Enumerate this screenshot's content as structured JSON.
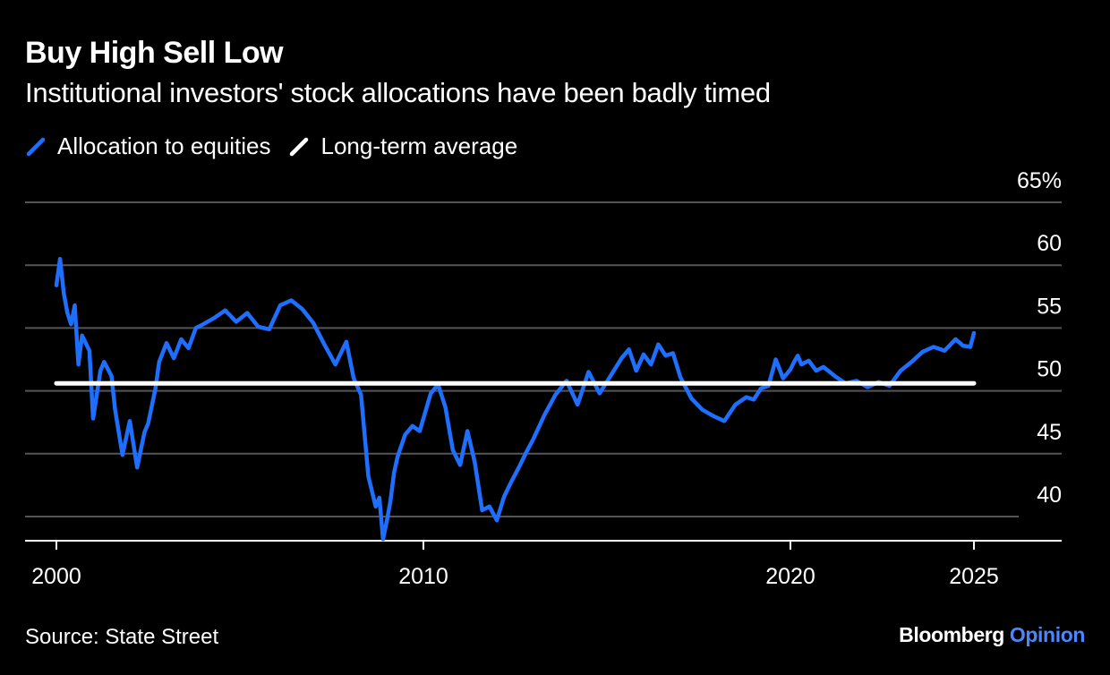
{
  "header": {
    "title": "Buy High Sell Low",
    "subtitle": "Institutional investors' stock allocations have been badly timed"
  },
  "legend": {
    "items": [
      {
        "label": "Allocation to equities",
        "color": "#1f6fff"
      },
      {
        "label": "Long-term average",
        "color": "#ffffff"
      }
    ]
  },
  "footer": {
    "source": "Source: State Street",
    "brand_main": "Bloomberg",
    "brand_accent": "Opinion"
  },
  "colors": {
    "background": "#000000",
    "series": "#1f6fff",
    "average": "#ffffff",
    "grid": "#555555",
    "text": "#ffffff",
    "brand_accent": "#4c86ff"
  },
  "chart_data": {
    "type": "line",
    "title": "Buy High Sell Low",
    "subtitle": "Institutional investors' stock allocations have been badly timed",
    "y_axis": {
      "min": 37,
      "max": 65,
      "ticks": [
        40,
        45,
        50,
        55,
        60,
        65
      ],
      "tick_labels": [
        "40",
        "45",
        "50",
        "55",
        "60",
        "65%"
      ],
      "position": "right",
      "grid": true
    },
    "x_axis": {
      "min": 2000,
      "max": 2026,
      "ticks": [
        2000,
        2010,
        2020,
        2025
      ],
      "tick_labels": [
        "2000",
        "2010",
        "2020",
        "2025"
      ]
    },
    "legend_position": "top-left",
    "series": [
      {
        "name": "Allocation to equities",
        "x": [
          2000.0,
          2000.1,
          2000.2,
          2000.3,
          2000.4,
          2000.5,
          2000.6,
          2000.7,
          2000.9,
          2001.0,
          2001.2,
          2001.3,
          2001.5,
          2001.6,
          2001.8,
          2002.0,
          2002.2,
          2002.3,
          2002.4,
          2002.5,
          2002.6,
          2002.7,
          2002.8,
          2003.0,
          2003.2,
          2003.4,
          2003.6,
          2003.8,
          2004.0,
          2004.3,
          2004.6,
          2004.9,
          2005.2,
          2005.5,
          2005.8,
          2006.1,
          2006.4,
          2006.7,
          2007.0,
          2007.3,
          2007.6,
          2007.9,
          2008.1,
          2008.3,
          2008.5,
          2008.7,
          2008.8,
          2008.9,
          2009.0,
          2009.1,
          2009.2,
          2009.3,
          2009.5,
          2009.7,
          2009.9,
          2010.2,
          2010.4,
          2010.6,
          2010.8,
          2011.0,
          2011.2,
          2011.4,
          2011.6,
          2011.8,
          2012.0,
          2012.2,
          2012.4,
          2012.6,
          2012.8,
          2013.0,
          2013.3,
          2013.6,
          2013.9,
          2014.2,
          2014.5,
          2014.8,
          2015.1,
          2015.4,
          2015.6,
          2015.8,
          2016.0,
          2016.2,
          2016.4,
          2016.6,
          2016.8,
          2017.0,
          2017.3,
          2017.6,
          2017.9,
          2018.2,
          2018.5,
          2018.8,
          2019.0,
          2019.2,
          2019.4,
          2019.6,
          2019.8,
          2020.0,
          2020.1,
          2020.2,
          2020.3,
          2020.5,
          2020.7,
          2020.9,
          2021.2,
          2021.5,
          2021.8,
          2022.1,
          2022.4,
          2022.7,
          2023.0,
          2023.3,
          2023.6,
          2023.9,
          2024.2,
          2024.5,
          2024.7,
          2024.9,
          2025.0
        ],
        "values": [
          58.4,
          60.5,
          57.8,
          56.2,
          55.3,
          56.8,
          52.1,
          54.4,
          53.2,
          47.8,
          51.6,
          52.3,
          51.2,
          48.5,
          44.9,
          47.6,
          43.9,
          45.3,
          46.7,
          47.4,
          48.8,
          50.2,
          52.3,
          53.8,
          52.6,
          54.1,
          53.4,
          55.0,
          55.3,
          55.8,
          56.4,
          55.5,
          56.2,
          55.1,
          54.9,
          56.8,
          57.2,
          56.5,
          55.4,
          53.7,
          52.1,
          53.9,
          51.0,
          49.7,
          43.2,
          40.8,
          41.5,
          38.2,
          39.6,
          41.2,
          43.5,
          44.8,
          46.5,
          47.2,
          46.8,
          49.8,
          50.5,
          48.7,
          45.3,
          44.1,
          46.8,
          44.3,
          40.5,
          40.8,
          39.7,
          41.6,
          42.8,
          43.9,
          45.1,
          46.2,
          48.1,
          49.7,
          50.8,
          48.9,
          51.5,
          49.8,
          51.2,
          52.6,
          53.3,
          51.6,
          52.9,
          52.1,
          53.7,
          52.8,
          53.0,
          51.1,
          49.4,
          48.5,
          48.0,
          47.6,
          48.9,
          49.5,
          49.3,
          50.2,
          50.4,
          52.5,
          51.0,
          51.7,
          52.3,
          52.8,
          52.1,
          52.4,
          51.6,
          51.9,
          51.2,
          50.6,
          50.8,
          50.3,
          50.7,
          50.4,
          51.6,
          52.3,
          53.1,
          53.5,
          53.2,
          54.1,
          53.6,
          53.5,
          54.6
        ],
        "color": "#1f6fff"
      },
      {
        "name": "Long-term average",
        "x": [
          2000.0,
          2025.0
        ],
        "values": [
          50.6,
          50.6
        ],
        "color": "#ffffff"
      }
    ]
  }
}
